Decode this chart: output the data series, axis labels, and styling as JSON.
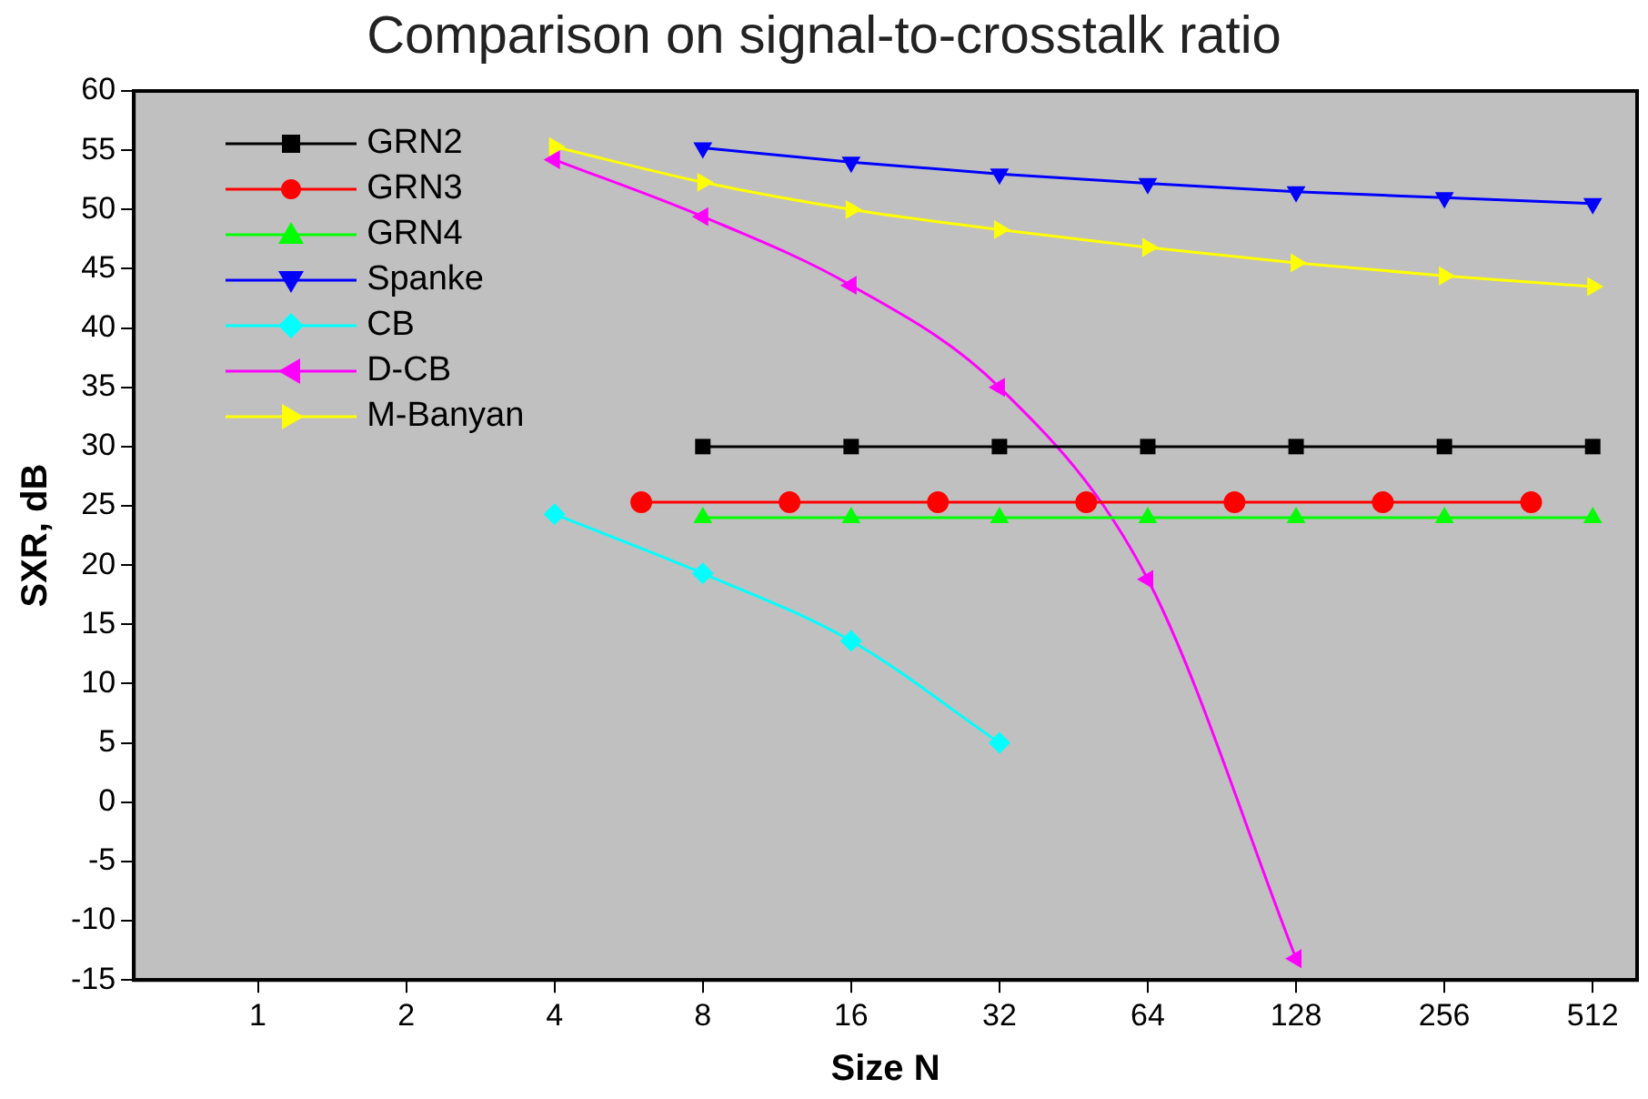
{
  "chart_data": {
    "type": "line",
    "title": "Comparison on signal-to-crosstalk ratio",
    "xlabel": "Size N",
    "ylabel": "SXR, dB",
    "log": "x",
    "grid": false,
    "legend": "top left",
    "xlim": [
      0.56,
      630
    ],
    "xticks": [
      1,
      2,
      4,
      8,
      16,
      32,
      64,
      128,
      256,
      512
    ],
    "ylim": [
      -15,
      60
    ],
    "yticks": [
      -15,
      -10,
      -5,
      0,
      5,
      10,
      15,
      20,
      25,
      30,
      35,
      40,
      45,
      50,
      55,
      60
    ],
    "series": [
      {
        "name": "GRN2",
        "color": "#000000",
        "marker": "square",
        "x": [
          8,
          16,
          32,
          64,
          128,
          256,
          512
        ],
        "values": [
          30,
          30,
          30,
          30,
          30,
          30,
          30
        ]
      },
      {
        "name": "GRN3",
        "color": "#ff0000",
        "marker": "circle",
        "x": [
          6,
          12,
          24,
          48,
          96,
          192,
          384
        ],
        "values": [
          25.3,
          25.3,
          25.3,
          25.3,
          25.3,
          25.3,
          25.3
        ]
      },
      {
        "name": "GRN4",
        "color": "#00ff00",
        "marker": "triangle",
        "x": [
          8,
          16,
          32,
          64,
          128,
          256,
          512
        ],
        "values": [
          24,
          24,
          24,
          24,
          24,
          24,
          24
        ]
      },
      {
        "name": "Spanke",
        "color": "#0000ff",
        "marker": "triangle-down",
        "x": [
          8,
          16,
          32,
          64,
          128,
          256,
          512
        ],
        "values": [
          55.2,
          54,
          53,
          52.2,
          51.5,
          51,
          50.5
        ]
      },
      {
        "name": "CB",
        "color": "#00ffff",
        "marker": "diamond",
        "x": [
          4,
          8,
          16,
          32
        ],
        "values": [
          24.3,
          19.3,
          13.6,
          5
        ]
      },
      {
        "name": "D-CB",
        "color": "#ff00ff",
        "marker": "triangle-left",
        "x": [
          4,
          8,
          16,
          32,
          64,
          128
        ],
        "values": [
          54.2,
          49.4,
          43.6,
          35,
          18.8,
          -13.2
        ]
      },
      {
        "name": "M-Banyan",
        "color": "#ffff00",
        "marker": "triangle-right",
        "x": [
          4,
          8,
          16,
          32,
          64,
          128,
          256,
          512
        ],
        "values": [
          55.3,
          52.3,
          50,
          48.3,
          46.8,
          45.5,
          44.4,
          43.5
        ]
      }
    ]
  }
}
